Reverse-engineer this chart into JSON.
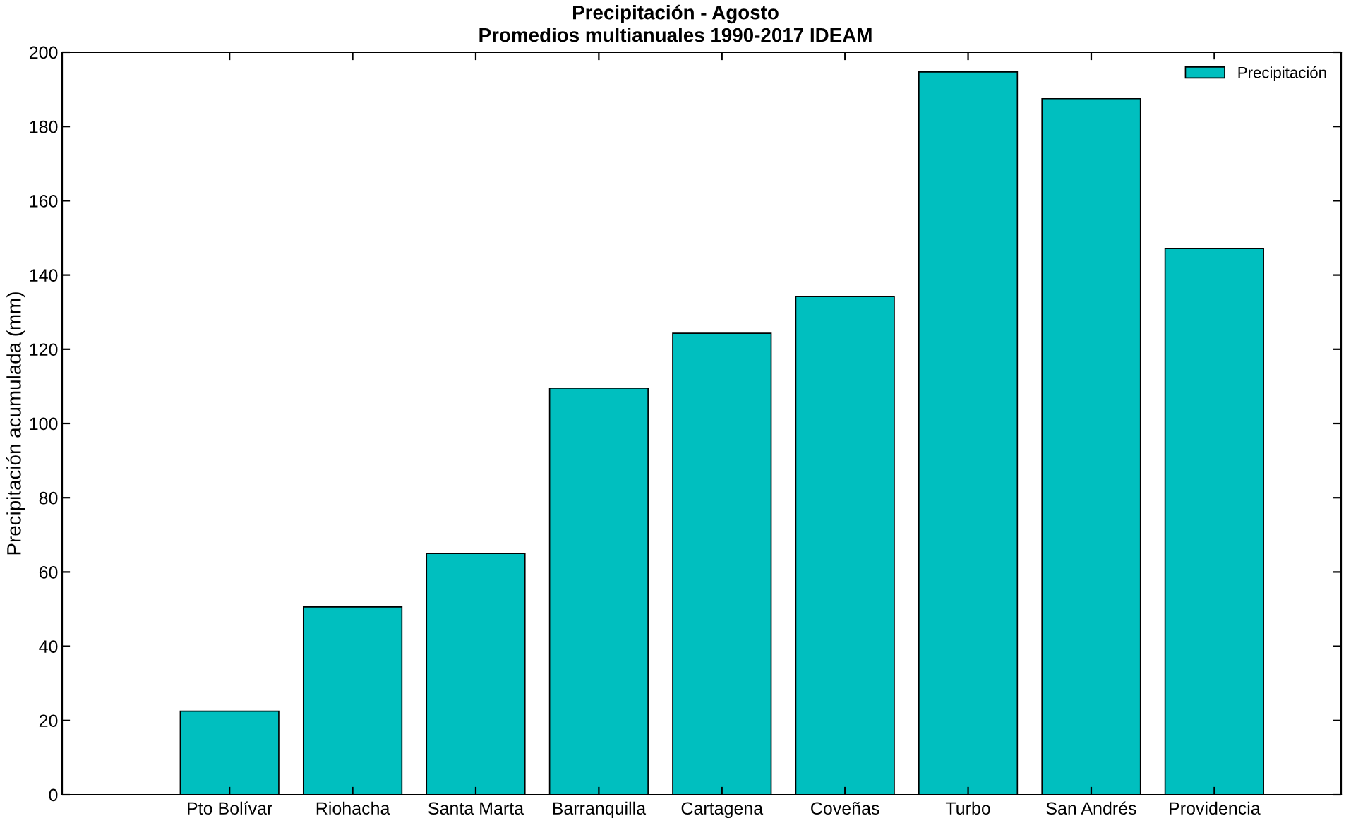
{
  "chart_data": {
    "type": "bar",
    "title": "Precipitación - Agosto",
    "subtitle": "Promedios multianuales 1990-2017 IDEAM",
    "ylabel": "Precipitación acumulada (mm)",
    "categories": [
      "Pto Bolívar",
      "Riohacha",
      "Santa Marta",
      "Barranquilla",
      "Cartagena",
      "Coveñas",
      "Turbo",
      "San Andrés",
      "Providencia"
    ],
    "series": [
      {
        "name": "Precipitación",
        "color": "#00bfbf",
        "values": [
          22.5,
          50.6,
          65.0,
          109.5,
          124.3,
          134.2,
          194.7,
          187.5,
          147.1
        ]
      }
    ],
    "ylim": [
      0,
      200
    ],
    "yticks": [
      0,
      20,
      40,
      60,
      80,
      100,
      120,
      140,
      160,
      180,
      200
    ],
    "grid": false,
    "legend": "top right"
  }
}
